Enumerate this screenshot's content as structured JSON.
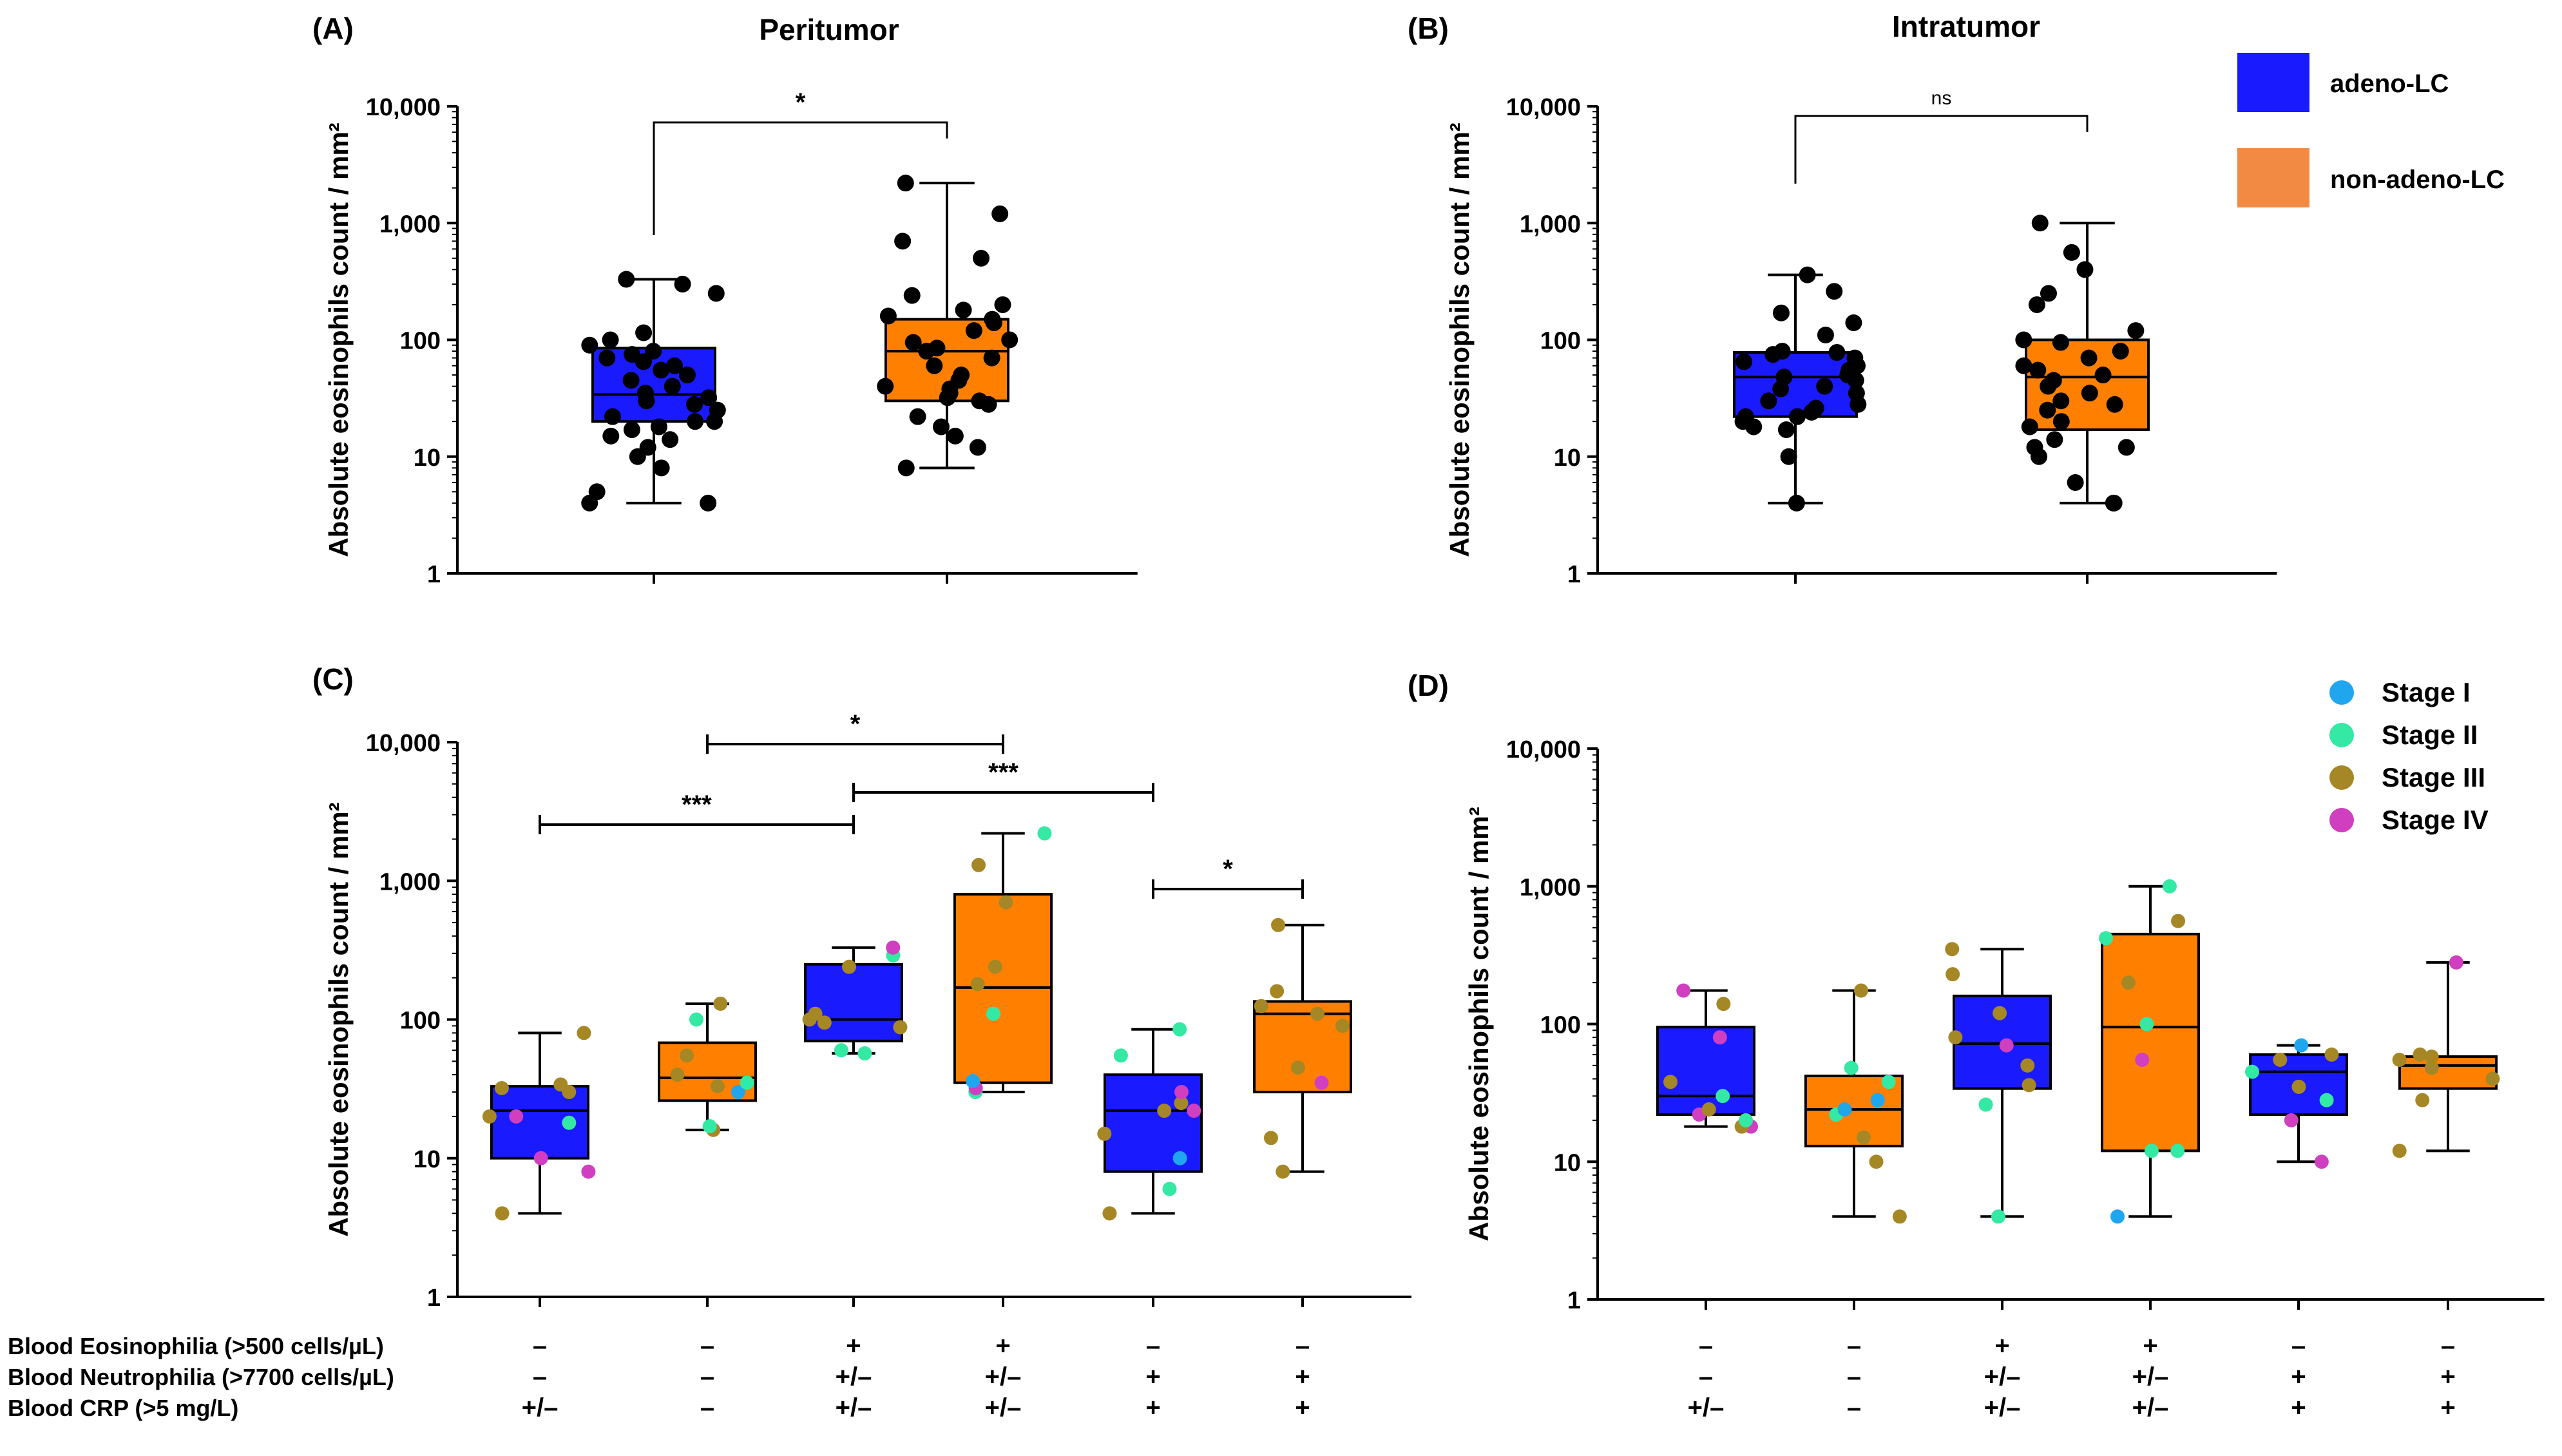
{
  "figure": {
    "panel_labels": [
      "(A)",
      "(B)",
      "(C)",
      "(D)"
    ],
    "titles": [
      "Peritumor",
      "Intratumor"
    ],
    "y_label": "Absolute eosinophils count / mm²",
    "y_ticks": [
      "1",
      "10",
      "100",
      "1,000",
      "10,000"
    ],
    "legend_groups": [
      {
        "label": "adeno-LC",
        "color": "#1a1aff"
      },
      {
        "label": "non-adeno-LC",
        "color": "#f28a44"
      }
    ],
    "legend_stages": [
      {
        "label": "Stage I",
        "color": "#1fa6ee"
      },
      {
        "label": "Stage II",
        "color": "#33e9a4"
      },
      {
        "label": "Stage III",
        "color": "#a68725"
      },
      {
        "label": "Stage IV",
        "color": "#cf3fc0"
      }
    ],
    "box_colors": {
      "blue": "#1a1aff",
      "orange": "#ff8000"
    },
    "dot_color_black": "#000000",
    "row_labels": [
      "Blood Eosinophilia  (>500 cells/µL)",
      "Blood Neutrophilia  (>7700 cells/µL)",
      "Blood CRP (>5 mg/L)"
    ]
  },
  "chart_data": [
    {
      "panel": "(A)",
      "type": "box",
      "title": "Peritumor",
      "ylabel": "Absolute eosinophils count / mm²",
      "yscale": "log",
      "ylim": [
        1,
        10000
      ],
      "groups": [
        {
          "name": "adeno-LC",
          "color": "blue",
          "min": 4,
          "q1": 20,
          "median": 34,
          "q3": 85,
          "max": 330,
          "points": [
            4,
            4,
            5,
            8,
            10,
            12,
            14,
            15,
            17,
            18,
            20,
            20,
            22,
            25,
            28,
            30,
            32,
            35,
            40,
            45,
            50,
            55,
            60,
            65,
            70,
            75,
            80,
            90,
            100,
            115,
            250,
            300,
            330
          ]
        },
        {
          "name": "non-adeno-LC",
          "color": "orange",
          "min": 8,
          "q1": 30,
          "median": 80,
          "q3": 150,
          "max": 2200,
          "points": [
            8,
            12,
            15,
            18,
            22,
            28,
            30,
            32,
            35,
            38,
            40,
            45,
            50,
            60,
            70,
            80,
            85,
            95,
            100,
            120,
            140,
            150,
            160,
            180,
            200,
            240,
            500,
            700,
            1200,
            2200
          ]
        }
      ],
      "significance": [
        {
          "between": [
            0,
            1
          ],
          "label": "*"
        }
      ]
    },
    {
      "panel": "(B)",
      "type": "box",
      "title": "Intratumor",
      "ylabel": "Absolute eosinophils count / mm²",
      "yscale": "log",
      "ylim": [
        1,
        10000
      ],
      "groups": [
        {
          "name": "adeno-LC",
          "color": "blue",
          "min": 4,
          "q1": 22,
          "median": 48,
          "q3": 78,
          "max": 360,
          "points": [
            4,
            10,
            17,
            18,
            20,
            22,
            22,
            24,
            26,
            28,
            30,
            35,
            38,
            40,
            45,
            48,
            50,
            55,
            60,
            65,
            70,
            75,
            78,
            80,
            110,
            140,
            170,
            260,
            360
          ]
        },
        {
          "name": "non-adeno-LC",
          "color": "orange",
          "min": 4,
          "q1": 17,
          "median": 48,
          "q3": 100,
          "max": 1000,
          "points": [
            4,
            4,
            6,
            10,
            12,
            12,
            14,
            18,
            20,
            25,
            28,
            30,
            35,
            40,
            45,
            50,
            55,
            60,
            70,
            80,
            95,
            100,
            120,
            200,
            250,
            400,
            560,
            1000
          ]
        }
      ],
      "significance": [
        {
          "between": [
            0,
            1
          ],
          "label": "ns"
        }
      ]
    },
    {
      "panel": "(C)",
      "type": "box",
      "ylabel": "Absolute eosinophils count / mm²",
      "yscale": "log",
      "ylim": [
        1,
        10000
      ],
      "conditions": [
        {
          "eosinophilia": "–",
          "neutrophilia": "–",
          "crp": "+/–"
        },
        {
          "eosinophilia": "–",
          "neutrophilia": "–",
          "crp": "–"
        },
        {
          "eosinophilia": "+",
          "neutrophilia": "+/–",
          "crp": "+/–"
        },
        {
          "eosinophilia": "+",
          "neutrophilia": "+/–",
          "crp": "+/–"
        },
        {
          "eosinophilia": "–",
          "neutrophilia": "+",
          "crp": "+"
        },
        {
          "eosinophilia": "–",
          "neutrophilia": "+",
          "crp": "+"
        }
      ],
      "groups": [
        {
          "color": "blue",
          "min": 4,
          "q1": 10,
          "median": 22,
          "q3": 33,
          "max": 80,
          "points": [
            [
              4,
              "III"
            ],
            [
              8,
              "IV"
            ],
            [
              10,
              "IV"
            ],
            [
              18,
              "II"
            ],
            [
              20,
              "III"
            ],
            [
              20,
              "IV"
            ],
            [
              30,
              "III"
            ],
            [
              32,
              "III"
            ],
            [
              34,
              "III"
            ],
            [
              80,
              "III"
            ]
          ]
        },
        {
          "color": "orange",
          "min": 16,
          "q1": 26,
          "median": 38,
          "q3": 68,
          "max": 130,
          "points": [
            [
              16,
              "III"
            ],
            [
              17,
              "II"
            ],
            [
              30,
              "I"
            ],
            [
              33,
              "III"
            ],
            [
              35,
              "II"
            ],
            [
              40,
              "III"
            ],
            [
              55,
              "III"
            ],
            [
              100,
              "II"
            ],
            [
              130,
              "III"
            ]
          ]
        },
        {
          "color": "blue",
          "min": 57,
          "q1": 70,
          "median": 100,
          "q3": 250,
          "max": 330,
          "points": [
            [
              57,
              "II"
            ],
            [
              60,
              "II"
            ],
            [
              88,
              "III"
            ],
            [
              95,
              "III"
            ],
            [
              100,
              "III"
            ],
            [
              110,
              "III"
            ],
            [
              240,
              "III"
            ],
            [
              290,
              "II"
            ],
            [
              330,
              "IV"
            ]
          ]
        },
        {
          "color": "orange",
          "min": 30,
          "q1": 35,
          "median": 170,
          "q3": 800,
          "max": 2200,
          "points": [
            [
              30,
              "II"
            ],
            [
              32,
              "IV"
            ],
            [
              36,
              "I"
            ],
            [
              110,
              "II"
            ],
            [
              180,
              "III"
            ],
            [
              240,
              "III"
            ],
            [
              700,
              "III"
            ],
            [
              1300,
              "III"
            ],
            [
              2200,
              "II"
            ]
          ]
        },
        {
          "color": "blue",
          "min": 4,
          "q1": 8,
          "median": 22,
          "q3": 40,
          "max": 85,
          "points": [
            [
              4,
              "III"
            ],
            [
              6,
              "II"
            ],
            [
              10,
              "I"
            ],
            [
              15,
              "III"
            ],
            [
              22,
              "III"
            ],
            [
              22,
              "IV"
            ],
            [
              25,
              "III"
            ],
            [
              30,
              "IV"
            ],
            [
              55,
              "II"
            ],
            [
              85,
              "II"
            ]
          ]
        },
        {
          "color": "orange",
          "min": 8,
          "q1": 30,
          "median": 110,
          "q3": 135,
          "max": 480,
          "points": [
            [
              8,
              "III"
            ],
            [
              14,
              "III"
            ],
            [
              35,
              "IV"
            ],
            [
              45,
              "III"
            ],
            [
              90,
              "III"
            ],
            [
              110,
              "III"
            ],
            [
              125,
              "III"
            ],
            [
              160,
              "III"
            ],
            [
              480,
              "III"
            ]
          ]
        }
      ],
      "significance": [
        {
          "between": [
            0,
            2
          ],
          "label": "***"
        },
        {
          "between": [
            1,
            3
          ],
          "label": "*"
        },
        {
          "between": [
            2,
            4
          ],
          "label": "***"
        },
        {
          "between": [
            4,
            5
          ],
          "label": "*"
        }
      ]
    },
    {
      "panel": "(D)",
      "type": "box",
      "ylabel": "Absolute eosinophils count / mm²",
      "yscale": "log",
      "ylim": [
        1,
        10000
      ],
      "conditions": [
        {
          "eosinophilia": "–",
          "neutrophilia": "–",
          "crp": "+/–"
        },
        {
          "eosinophilia": "–",
          "neutrophilia": "–",
          "crp": "–"
        },
        {
          "eosinophilia": "+",
          "neutrophilia": "+/–",
          "crp": "+/–"
        },
        {
          "eosinophilia": "+",
          "neutrophilia": "+/–",
          "crp": "+/–"
        },
        {
          "eosinophilia": "–",
          "neutrophilia": "+",
          "crp": "+"
        },
        {
          "eosinophilia": "–",
          "neutrophilia": "+",
          "crp": "+"
        }
      ],
      "groups": [
        {
          "color": "blue",
          "min": 18,
          "q1": 22,
          "median": 30,
          "q3": 95,
          "max": 175,
          "points": [
            [
              18,
              "IV"
            ],
            [
              18,
              "III"
            ],
            [
              20,
              "II"
            ],
            [
              22,
              "IV"
            ],
            [
              24,
              "III"
            ],
            [
              30,
              "II"
            ],
            [
              38,
              "III"
            ],
            [
              80,
              "IV"
            ],
            [
              140,
              "III"
            ],
            [
              175,
              "IV"
            ]
          ]
        },
        {
          "color": "orange",
          "min": 4,
          "q1": 13,
          "median": 24,
          "q3": 42,
          "max": 175,
          "points": [
            [
              4,
              "III"
            ],
            [
              10,
              "III"
            ],
            [
              15,
              "III"
            ],
            [
              22,
              "II"
            ],
            [
              24,
              "I"
            ],
            [
              28,
              "I"
            ],
            [
              38,
              "II"
            ],
            [
              48,
              "II"
            ],
            [
              175,
              "III"
            ]
          ]
        },
        {
          "color": "blue",
          "min": 4,
          "q1": 34,
          "median": 72,
          "q3": 160,
          "max": 350,
          "points": [
            [
              4,
              "II"
            ],
            [
              26,
              "II"
            ],
            [
              36,
              "III"
            ],
            [
              50,
              "III"
            ],
            [
              70,
              "IV"
            ],
            [
              80,
              "III"
            ],
            [
              120,
              "III"
            ],
            [
              230,
              "III"
            ],
            [
              350,
              "III"
            ]
          ]
        },
        {
          "color": "orange",
          "min": 4,
          "q1": 12,
          "median": 95,
          "q3": 450,
          "max": 1000,
          "points": [
            [
              4,
              "I"
            ],
            [
              12,
              "II"
            ],
            [
              12,
              "II"
            ],
            [
              55,
              "IV"
            ],
            [
              100,
              "II"
            ],
            [
              200,
              "III"
            ],
            [
              420,
              "II"
            ],
            [
              560,
              "III"
            ],
            [
              1000,
              "II"
            ]
          ]
        },
        {
          "color": "blue",
          "min": 10,
          "q1": 22,
          "median": 45,
          "q3": 60,
          "max": 70,
          "points": [
            [
              10,
              "IV"
            ],
            [
              20,
              "IV"
            ],
            [
              28,
              "II"
            ],
            [
              35,
              "III"
            ],
            [
              45,
              "II"
            ],
            [
              55,
              "III"
            ],
            [
              60,
              "III"
            ],
            [
              70,
              "I"
            ]
          ]
        },
        {
          "color": "orange",
          "min": 12,
          "q1": 34,
          "median": 50,
          "q3": 58,
          "max": 280,
          "points": [
            [
              12,
              "III"
            ],
            [
              28,
              "III"
            ],
            [
              40,
              "III"
            ],
            [
              48,
              "III"
            ],
            [
              55,
              "III"
            ],
            [
              58,
              "III"
            ],
            [
              60,
              "III"
            ],
            [
              280,
              "IV"
            ]
          ]
        }
      ],
      "significance": []
    }
  ]
}
